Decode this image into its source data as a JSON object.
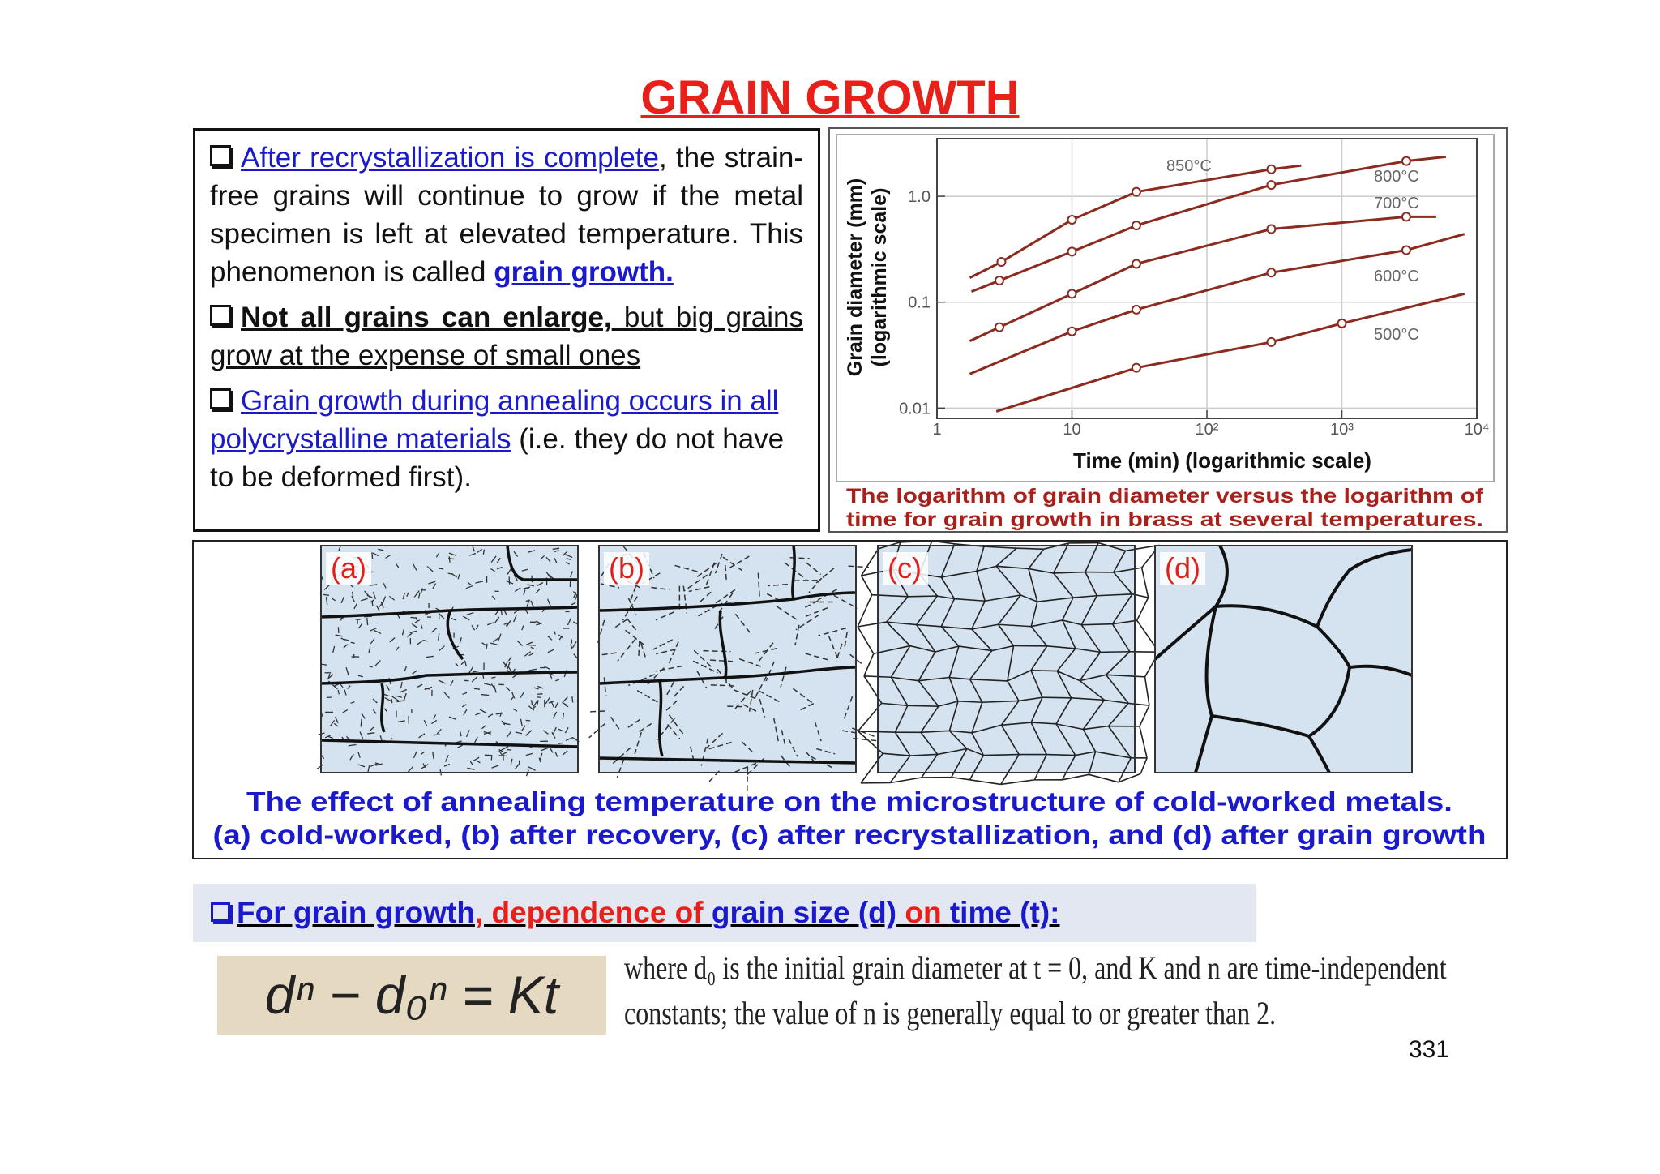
{
  "title": "GRAIN GROWTH",
  "text_box": {
    "items": [
      {
        "align": "justify",
        "segments": [
          {
            "text": "After recrystallization is complete",
            "style": "link"
          },
          {
            "text": ", the strain-free grains will continue to grow if the metal specimen is left at elevated temperature. This phenomenon is called ",
            "style": "plain"
          },
          {
            "text": "grain growth.",
            "style": "link-bold"
          }
        ]
      },
      {
        "align": "justify",
        "segments": [
          {
            "text": "Not all grains can enlarge,",
            "style": "bold-underline"
          },
          {
            "text": " but big grains grow at the expense of  small ones",
            "style": "underline"
          }
        ]
      },
      {
        "align": "left",
        "segments": [
          {
            "text": "Grain growth during annealing occurs in all polycrystalline materials",
            "style": "link"
          },
          {
            "text": " (i.e. they do not have to be deformed first).",
            "style": "plain"
          }
        ]
      }
    ]
  },
  "chart_data": {
    "type": "line",
    "log_x": true,
    "log_y": true,
    "grid": true,
    "xlabel": "Time (min) (logarithmic scale)",
    "ylabel": [
      "Grain diameter (mm)",
      "(logarithmic scale)"
    ],
    "caption": [
      "The logarithm of grain diameter versus the logarithm of",
      "time for grain growth in brass at several temperatures."
    ],
    "xlim": [
      1,
      10000
    ],
    "ylim": [
      0.008,
      3.5
    ],
    "xticks": [
      1,
      10,
      {
        "value": 100,
        "label": "10²"
      },
      {
        "value": 1000,
        "label": "10³"
      },
      {
        "value": 10000,
        "label": "10⁴"
      }
    ],
    "yticks": [
      0.01,
      0.1,
      {
        "value": 1,
        "label": "1.0"
      }
    ],
    "series": [
      {
        "name": "850°C",
        "color": "#8b2b20",
        "x": [
          1.75,
          3,
          10,
          30,
          300,
          500
        ],
        "values": [
          0.17,
          0.24,
          0.6,
          1.1,
          1.8,
          1.95
        ]
      },
      {
        "name": "800°C",
        "color": "#8b2b20",
        "x": [
          1.8,
          2.9,
          10,
          30,
          300,
          3000,
          5900
        ],
        "values": [
          0.126,
          0.16,
          0.3,
          0.53,
          1.28,
          2.15,
          2.36
        ]
      },
      {
        "name": "700°C",
        "color": "#8b2b20",
        "x": [
          1.75,
          2.9,
          10,
          30,
          300,
          3000,
          5000
        ],
        "values": [
          0.043,
          0.058,
          0.12,
          0.23,
          0.49,
          0.64,
          0.64
        ]
      },
      {
        "name": "600°C",
        "color": "#8b2b20",
        "x": [
          1.75,
          10,
          30,
          300,
          3000,
          8100
        ],
        "values": [
          0.021,
          0.053,
          0.085,
          0.19,
          0.31,
          0.44
        ]
      },
      {
        "name": "500°C",
        "color": "#8b2b20",
        "x": [
          2.75,
          30,
          300,
          1000,
          8100
        ],
        "values": [
          0.0093,
          0.024,
          0.042,
          0.063,
          0.12
        ]
      }
    ]
  },
  "figure": {
    "panels": [
      "(a)",
      "(b)",
      "(c)",
      "(d)"
    ],
    "caption": [
      "The effect of annealing temperature on the microstructure of cold-worked metals.",
      "(a) cold-worked, (b) after recovery, (c) after recrystallization, and (d) after grain growth"
    ]
  },
  "formula": {
    "heading": [
      {
        "text": "For grain growth",
        "color": "#1a1acc"
      },
      {
        "text": ", dependence of ",
        "color": "#e8201a"
      },
      {
        "text": "grain size (d)",
        "color": "#1a1acc"
      },
      {
        "text": " on ",
        "color": "#e8201a"
      },
      {
        "text": "time (t):",
        "color": "#1a1acc"
      }
    ],
    "equation": "dⁿ − d₀ⁿ = Kt",
    "explanation": "where d₀ is the initial grain diameter at t = 0, and K and n are time-independent constants; the value of n is generally equal to or greater than 2."
  },
  "page_number": "331"
}
